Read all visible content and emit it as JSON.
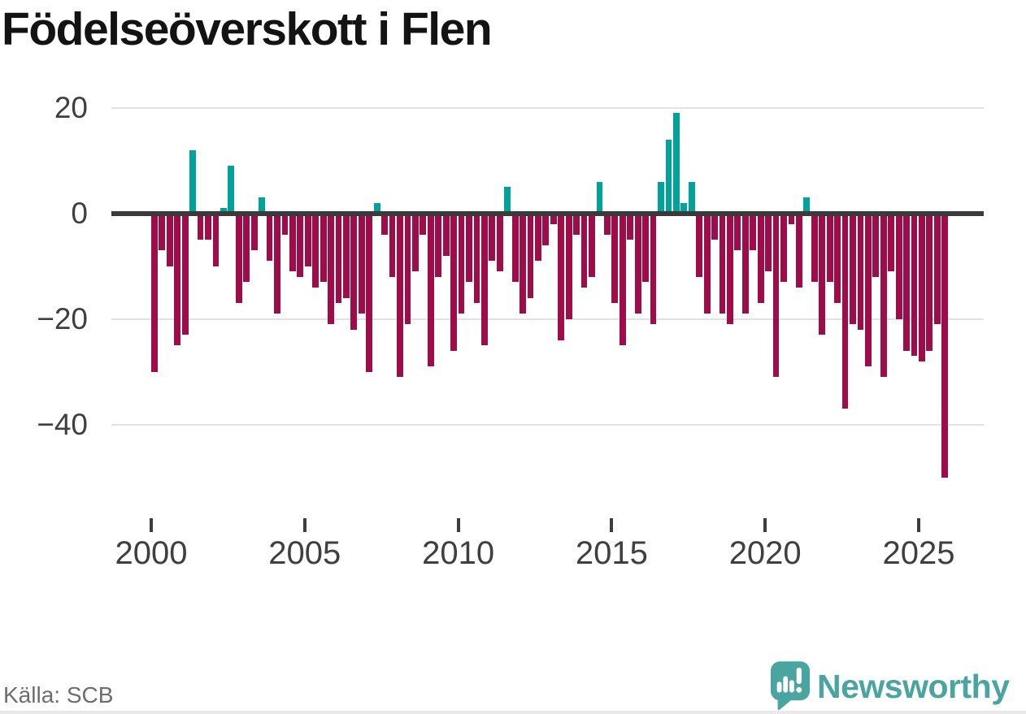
{
  "title": "Födelseöverskott i Flen",
  "footer": {
    "source": "Källa: SCB"
  },
  "branding": {
    "name": "Newsworthy",
    "icon": "newsworthy-speech-bubble-bar-chart-icon"
  },
  "colors": {
    "positive": "#00a29b",
    "negative": "#9e0d49",
    "brand": "#4aa5a0",
    "grid": "#e2e2e2",
    "zero_line": "#3a3a3a",
    "axis_text": "#3f3f3f",
    "title_text": "#131313",
    "source_text": "#6e6e6e"
  },
  "chart_data": {
    "type": "bar",
    "title": "Födelseöverskott i Flen",
    "frequency": "quarterly",
    "start_year": 2000,
    "end_year": 2025,
    "x_ticks": [
      2000,
      2005,
      2010,
      2015,
      2020,
      2025
    ],
    "y_ticks": [
      {
        "label": "20",
        "value": 20
      },
      {
        "label": "0",
        "value": 0
      },
      {
        "label": "−20",
        "value": -20
      },
      {
        "label": "−40",
        "value": -40
      }
    ],
    "ylim": [
      -52,
      22
    ],
    "grid": "horizontal",
    "legend": false,
    "values": [
      -30,
      -7,
      -10,
      -25,
      -23,
      12,
      -5,
      -5,
      -10,
      1,
      9,
      -17,
      -13,
      -7,
      3,
      -9,
      -19,
      -4,
      -11,
      -12,
      -10,
      -14,
      -13,
      -21,
      -17,
      -16,
      -22,
      -19,
      -30,
      2,
      -4,
      -12,
      -31,
      -21,
      -11,
      -4,
      -29,
      -12,
      -8,
      -26,
      -19,
      -13,
      -17,
      -25,
      -9,
      -11,
      5,
      -13,
      -19,
      -16,
      -9,
      -6,
      -2,
      -24,
      -20,
      -4,
      -14,
      -12,
      6,
      -4,
      -17,
      -25,
      -5,
      -19,
      -13,
      -21,
      6,
      14,
      19,
      2,
      6,
      -12,
      -19,
      -5,
      -19,
      -21,
      -7,
      -19,
      -7,
      -17,
      -11,
      -31,
      -13,
      -2,
      -14,
      3,
      -13,
      -23,
      -13,
      -17,
      -37,
      -21,
      -22,
      -29,
      -12,
      -31,
      -11,
      -20,
      -26,
      -27,
      -28,
      -26,
      -21,
      -50
    ]
  }
}
